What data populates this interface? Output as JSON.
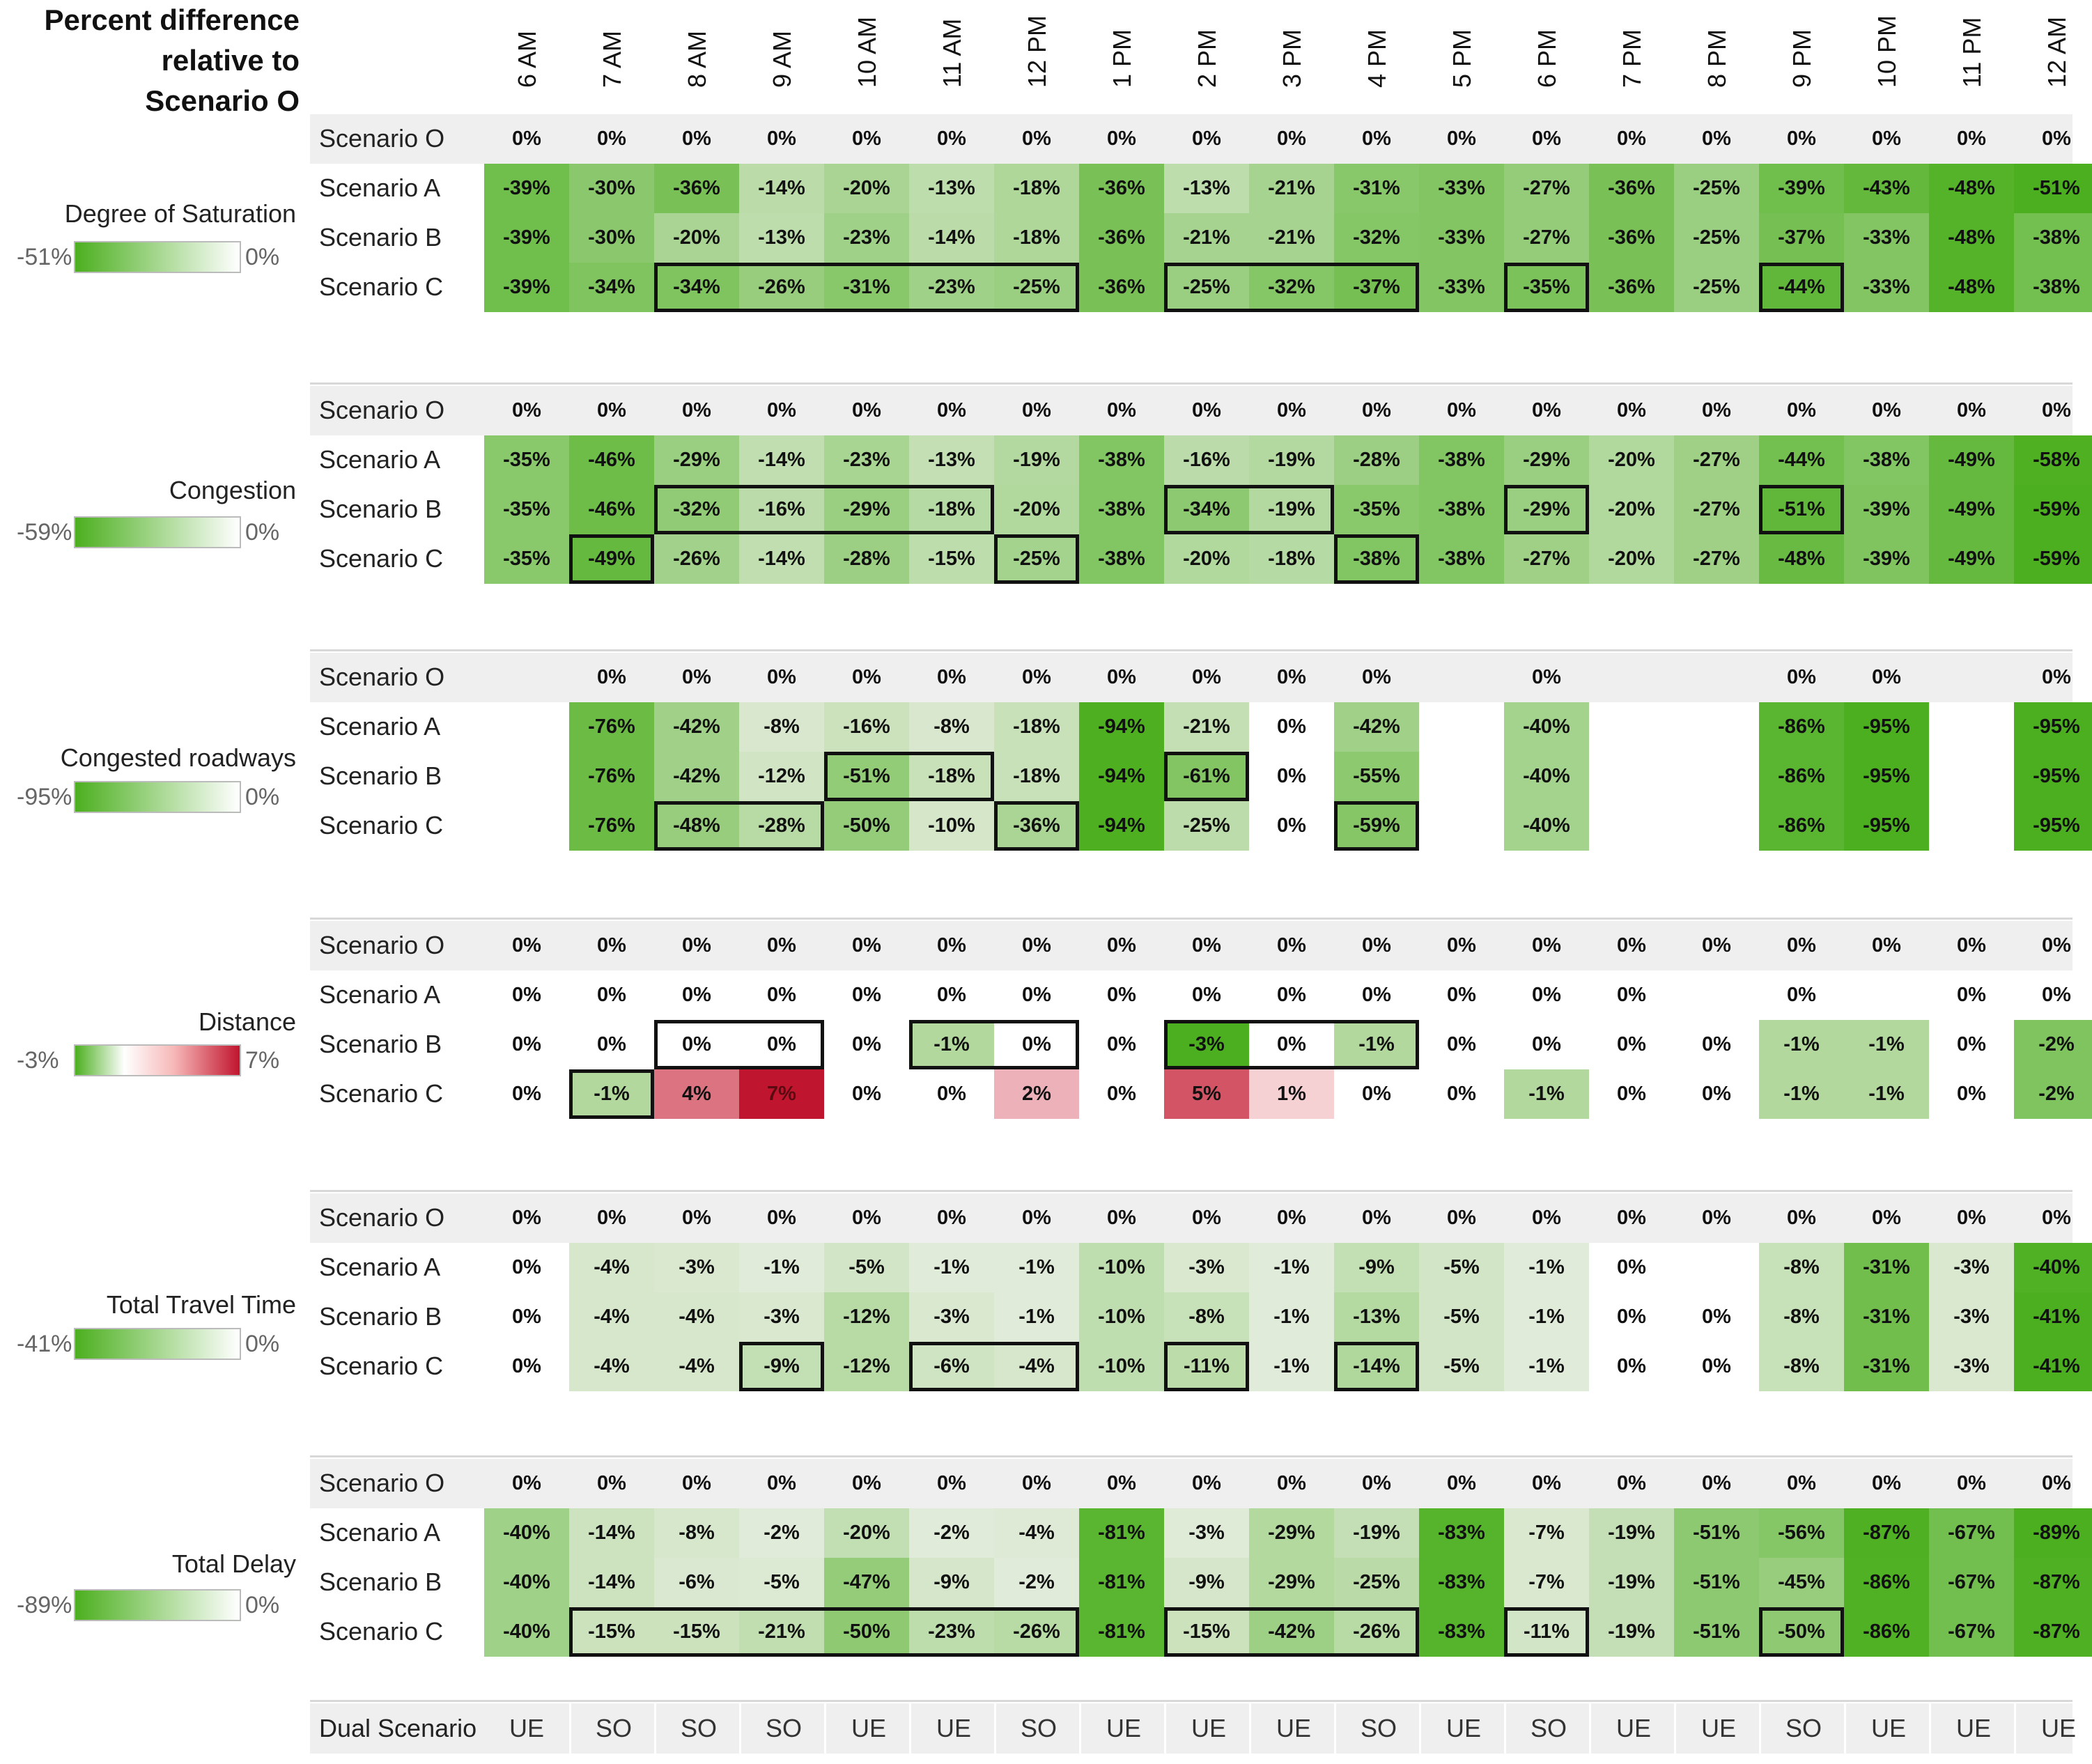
{
  "title": [
    "Percent difference",
    "relative to",
    "Scenario O"
  ],
  "hours": [
    "6 AM",
    "7 AM",
    "8 AM",
    "9 AM",
    "10 AM",
    "11 AM",
    "12 PM",
    "1 PM",
    "2 PM",
    "3 PM",
    "4 PM",
    "5 PM",
    "6 PM",
    "7 PM",
    "8 PM",
    "9 PM",
    "10 PM",
    "11 PM",
    "12 AM"
  ],
  "scenarios": [
    "Scenario O",
    "Scenario A",
    "Scenario B",
    "Scenario C"
  ],
  "colors": {
    "green_dark": "#4caf1f",
    "red_dark": "#c0152e",
    "box": "#111111"
  },
  "chart_data": {
    "type": "heatmap",
    "title": "Percent difference relative to Scenario O",
    "x": [
      "6 AM",
      "7 AM",
      "8 AM",
      "9 AM",
      "10 AM",
      "11 AM",
      "12 PM",
      "1 PM",
      "2 PM",
      "3 PM",
      "4 PM",
      "5 PM",
      "6 PM",
      "7 PM",
      "8 PM",
      "9 PM",
      "10 PM",
      "11 PM",
      "12 AM"
    ],
    "metrics": [
      {
        "name": "Degree of Saturation",
        "legend": {
          "min_label": "-51%",
          "max_label": "0%",
          "min": -51,
          "max": 0
        },
        "rows": [
          [
            "0%",
            "0%",
            "0%",
            "0%",
            "0%",
            "0%",
            "0%",
            "0%",
            "0%",
            "0%",
            "0%",
            "0%",
            "0%",
            "0%",
            "0%",
            "0%",
            "0%",
            "0%",
            "0%"
          ],
          [
            "-39%",
            "-30%",
            "-36%",
            "-14%",
            "-20%",
            "-13%",
            "-18%",
            "-36%",
            "-13%",
            "-21%",
            "-31%",
            "-33%",
            "-27%",
            "-36%",
            "-25%",
            "-39%",
            "-43%",
            "-48%",
            "-51%"
          ],
          [
            "-39%",
            "-30%",
            "-20%",
            "-13%",
            "-23%",
            "-14%",
            "-18%",
            "-36%",
            "-21%",
            "-21%",
            "-32%",
            "-33%",
            "-27%",
            "-36%",
            "-25%",
            "-37%",
            "-33%",
            "-48%",
            "-38%"
          ],
          [
            "-39%",
            "-34%",
            "-34%",
            "-26%",
            "-31%",
            "-23%",
            "-25%",
            "-36%",
            "-25%",
            "-32%",
            "-37%",
            "-33%",
            "-35%",
            "-36%",
            "-25%",
            "-44%",
            "-33%",
            "-48%",
            "-38%"
          ]
        ],
        "boxes": [
          [
            3,
            2,
            6
          ],
          [
            3,
            8,
            10
          ],
          [
            3,
            12,
            12
          ],
          [
            3,
            15,
            15
          ]
        ]
      },
      {
        "name": "Congestion",
        "legend": {
          "min_label": "-59%",
          "max_label": "0%",
          "min": -59,
          "max": 0
        },
        "rows": [
          [
            "0%",
            "0%",
            "0%",
            "0%",
            "0%",
            "0%",
            "0%",
            "0%",
            "0%",
            "0%",
            "0%",
            "0%",
            "0%",
            "0%",
            "0%",
            "0%",
            "0%",
            "0%",
            "0%"
          ],
          [
            "-35%",
            "-46%",
            "-29%",
            "-14%",
            "-23%",
            "-13%",
            "-19%",
            "-38%",
            "-16%",
            "-19%",
            "-28%",
            "-38%",
            "-29%",
            "-20%",
            "-27%",
            "-44%",
            "-38%",
            "-49%",
            "-58%"
          ],
          [
            "-35%",
            "-46%",
            "-32%",
            "-16%",
            "-29%",
            "-18%",
            "-20%",
            "-38%",
            "-34%",
            "-19%",
            "-35%",
            "-38%",
            "-29%",
            "-20%",
            "-27%",
            "-51%",
            "-39%",
            "-49%",
            "-59%"
          ],
          [
            "-35%",
            "-49%",
            "-26%",
            "-14%",
            "-28%",
            "-15%",
            "-25%",
            "-38%",
            "-20%",
            "-18%",
            "-38%",
            "-38%",
            "-27%",
            "-20%",
            "-27%",
            "-48%",
            "-39%",
            "-49%",
            "-59%"
          ]
        ],
        "boxes": [
          [
            2,
            2,
            5
          ],
          [
            2,
            8,
            9
          ],
          [
            2,
            12,
            12
          ],
          [
            2,
            15,
            15
          ],
          [
            3,
            1,
            1
          ],
          [
            3,
            6,
            6
          ],
          [
            3,
            10,
            10
          ]
        ]
      },
      {
        "name": "Congested roadways",
        "legend": {
          "min_label": "-95%",
          "max_label": "0%",
          "min": -95,
          "max": 0
        },
        "rows": [
          [
            "",
            "0%",
            "0%",
            "0%",
            "0%",
            "0%",
            "0%",
            "0%",
            "0%",
            "0%",
            "0%",
            "",
            "0%",
            "",
            "",
            "0%",
            "0%",
            "",
            "0%"
          ],
          [
            "",
            "-76%",
            "-42%",
            "-8%",
            "-16%",
            "-8%",
            "-18%",
            "-94%",
            "-21%",
            "0%",
            "-42%",
            "",
            "-40%",
            "",
            "",
            "-86%",
            "-95%",
            "",
            "-95%"
          ],
          [
            "",
            "-76%",
            "-42%",
            "-12%",
            "-51%",
            "-18%",
            "-18%",
            "-94%",
            "-61%",
            "0%",
            "-55%",
            "",
            "-40%",
            "",
            "",
            "-86%",
            "-95%",
            "",
            "-95%"
          ],
          [
            "",
            "-76%",
            "-48%",
            "-28%",
            "-50%",
            "-10%",
            "-36%",
            "-94%",
            "-25%",
            "0%",
            "-59%",
            "",
            "-40%",
            "",
            "",
            "-86%",
            "-95%",
            "",
            "-95%"
          ]
        ],
        "boxes": [
          [
            2,
            4,
            5
          ],
          [
            2,
            8,
            8
          ],
          [
            3,
            2,
            3
          ],
          [
            3,
            6,
            6
          ],
          [
            3,
            10,
            10
          ]
        ]
      },
      {
        "name": "Distance",
        "legend": {
          "min_label": "-3%",
          "max_label": "7%",
          "min": -3,
          "max": 7
        },
        "rows": [
          [
            "0%",
            "0%",
            "0%",
            "0%",
            "0%",
            "0%",
            "0%",
            "0%",
            "0%",
            "0%",
            "0%",
            "0%",
            "0%",
            "0%",
            "0%",
            "0%",
            "0%",
            "0%",
            "0%"
          ],
          [
            "0%",
            "0%",
            "0%",
            "0%",
            "0%",
            "0%",
            "0%",
            "0%",
            "0%",
            "0%",
            "0%",
            "0%",
            "0%",
            "0%",
            "",
            "0%",
            "",
            "0%",
            "0%"
          ],
          [
            "0%",
            "0%",
            "0%",
            "0%",
            "0%",
            "-1%",
            "0%",
            "0%",
            "-3%",
            "0%",
            "-1%",
            "0%",
            "0%",
            "0%",
            "0%",
            "-1%",
            "-1%",
            "0%",
            "-2%"
          ],
          [
            "0%",
            "-1%",
            "4%",
            "7%",
            "0%",
            "0%",
            "2%",
            "0%",
            "5%",
            "1%",
            "0%",
            "0%",
            "-1%",
            "0%",
            "0%",
            "-1%",
            "-1%",
            "0%",
            "-2%"
          ]
        ],
        "boxes": [
          [
            2,
            2,
            3
          ],
          [
            2,
            5,
            6
          ],
          [
            2,
            8,
            10
          ],
          [
            3,
            1,
            1
          ]
        ]
      },
      {
        "name": "Total Travel Time",
        "legend": {
          "min_label": "-41%",
          "max_label": "0%",
          "min": -41,
          "max": 0
        },
        "rows": [
          [
            "0%",
            "0%",
            "0%",
            "0%",
            "0%",
            "0%",
            "0%",
            "0%",
            "0%",
            "0%",
            "0%",
            "0%",
            "0%",
            "0%",
            "0%",
            "0%",
            "0%",
            "0%",
            "0%"
          ],
          [
            "0%",
            "-4%",
            "-3%",
            "-1%",
            "-5%",
            "-1%",
            "-1%",
            "-10%",
            "-3%",
            "-1%",
            "-9%",
            "-5%",
            "-1%",
            "0%",
            "",
            "-8%",
            "-31%",
            "-3%",
            "-40%"
          ],
          [
            "0%",
            "-4%",
            "-4%",
            "-3%",
            "-12%",
            "-3%",
            "-1%",
            "-10%",
            "-8%",
            "-1%",
            "-13%",
            "-5%",
            "-1%",
            "0%",
            "0%",
            "-8%",
            "-31%",
            "-3%",
            "-41%"
          ],
          [
            "0%",
            "-4%",
            "-4%",
            "-9%",
            "-12%",
            "-6%",
            "-4%",
            "-10%",
            "-11%",
            "-1%",
            "-14%",
            "-5%",
            "-1%",
            "0%",
            "0%",
            "-8%",
            "-31%",
            "-3%",
            "-41%"
          ]
        ],
        "boxes": [
          [
            3,
            3,
            3
          ],
          [
            3,
            5,
            6
          ],
          [
            3,
            8,
            8
          ],
          [
            3,
            10,
            10
          ]
        ]
      },
      {
        "name": "Total Delay",
        "legend": {
          "min_label": "-89%",
          "max_label": "0%",
          "min": -89,
          "max": 0
        },
        "rows": [
          [
            "0%",
            "0%",
            "0%",
            "0%",
            "0%",
            "0%",
            "0%",
            "0%",
            "0%",
            "0%",
            "0%",
            "0%",
            "0%",
            "0%",
            "0%",
            "0%",
            "0%",
            "0%",
            "0%"
          ],
          [
            "-40%",
            "-14%",
            "-8%",
            "-2%",
            "-20%",
            "-2%",
            "-4%",
            "-81%",
            "-3%",
            "-29%",
            "-19%",
            "-83%",
            "-7%",
            "-19%",
            "-51%",
            "-56%",
            "-87%",
            "-67%",
            "-89%"
          ],
          [
            "-40%",
            "-14%",
            "-6%",
            "-5%",
            "-47%",
            "-9%",
            "-2%",
            "-81%",
            "-9%",
            "-29%",
            "-25%",
            "-83%",
            "-7%",
            "-19%",
            "-51%",
            "-45%",
            "-86%",
            "-67%",
            "-87%"
          ],
          [
            "-40%",
            "-15%",
            "-15%",
            "-21%",
            "-50%",
            "-23%",
            "-26%",
            "-81%",
            "-15%",
            "-42%",
            "-26%",
            "-83%",
            "-11%",
            "-19%",
            "-51%",
            "-50%",
            "-86%",
            "-67%",
            "-87%"
          ]
        ],
        "boxes": [
          [
            3,
            1,
            6
          ],
          [
            3,
            8,
            10
          ],
          [
            3,
            12,
            12
          ],
          [
            3,
            15,
            15
          ]
        ]
      }
    ],
    "dual_scenario": {
      "label": "Dual Scenario",
      "values": [
        "UE",
        "SO",
        "SO",
        "SO",
        "UE",
        "UE",
        "SO",
        "UE",
        "UE",
        "UE",
        "SO",
        "UE",
        "SO",
        "UE",
        "UE",
        "SO",
        "UE",
        "UE",
        "UE"
      ]
    }
  }
}
